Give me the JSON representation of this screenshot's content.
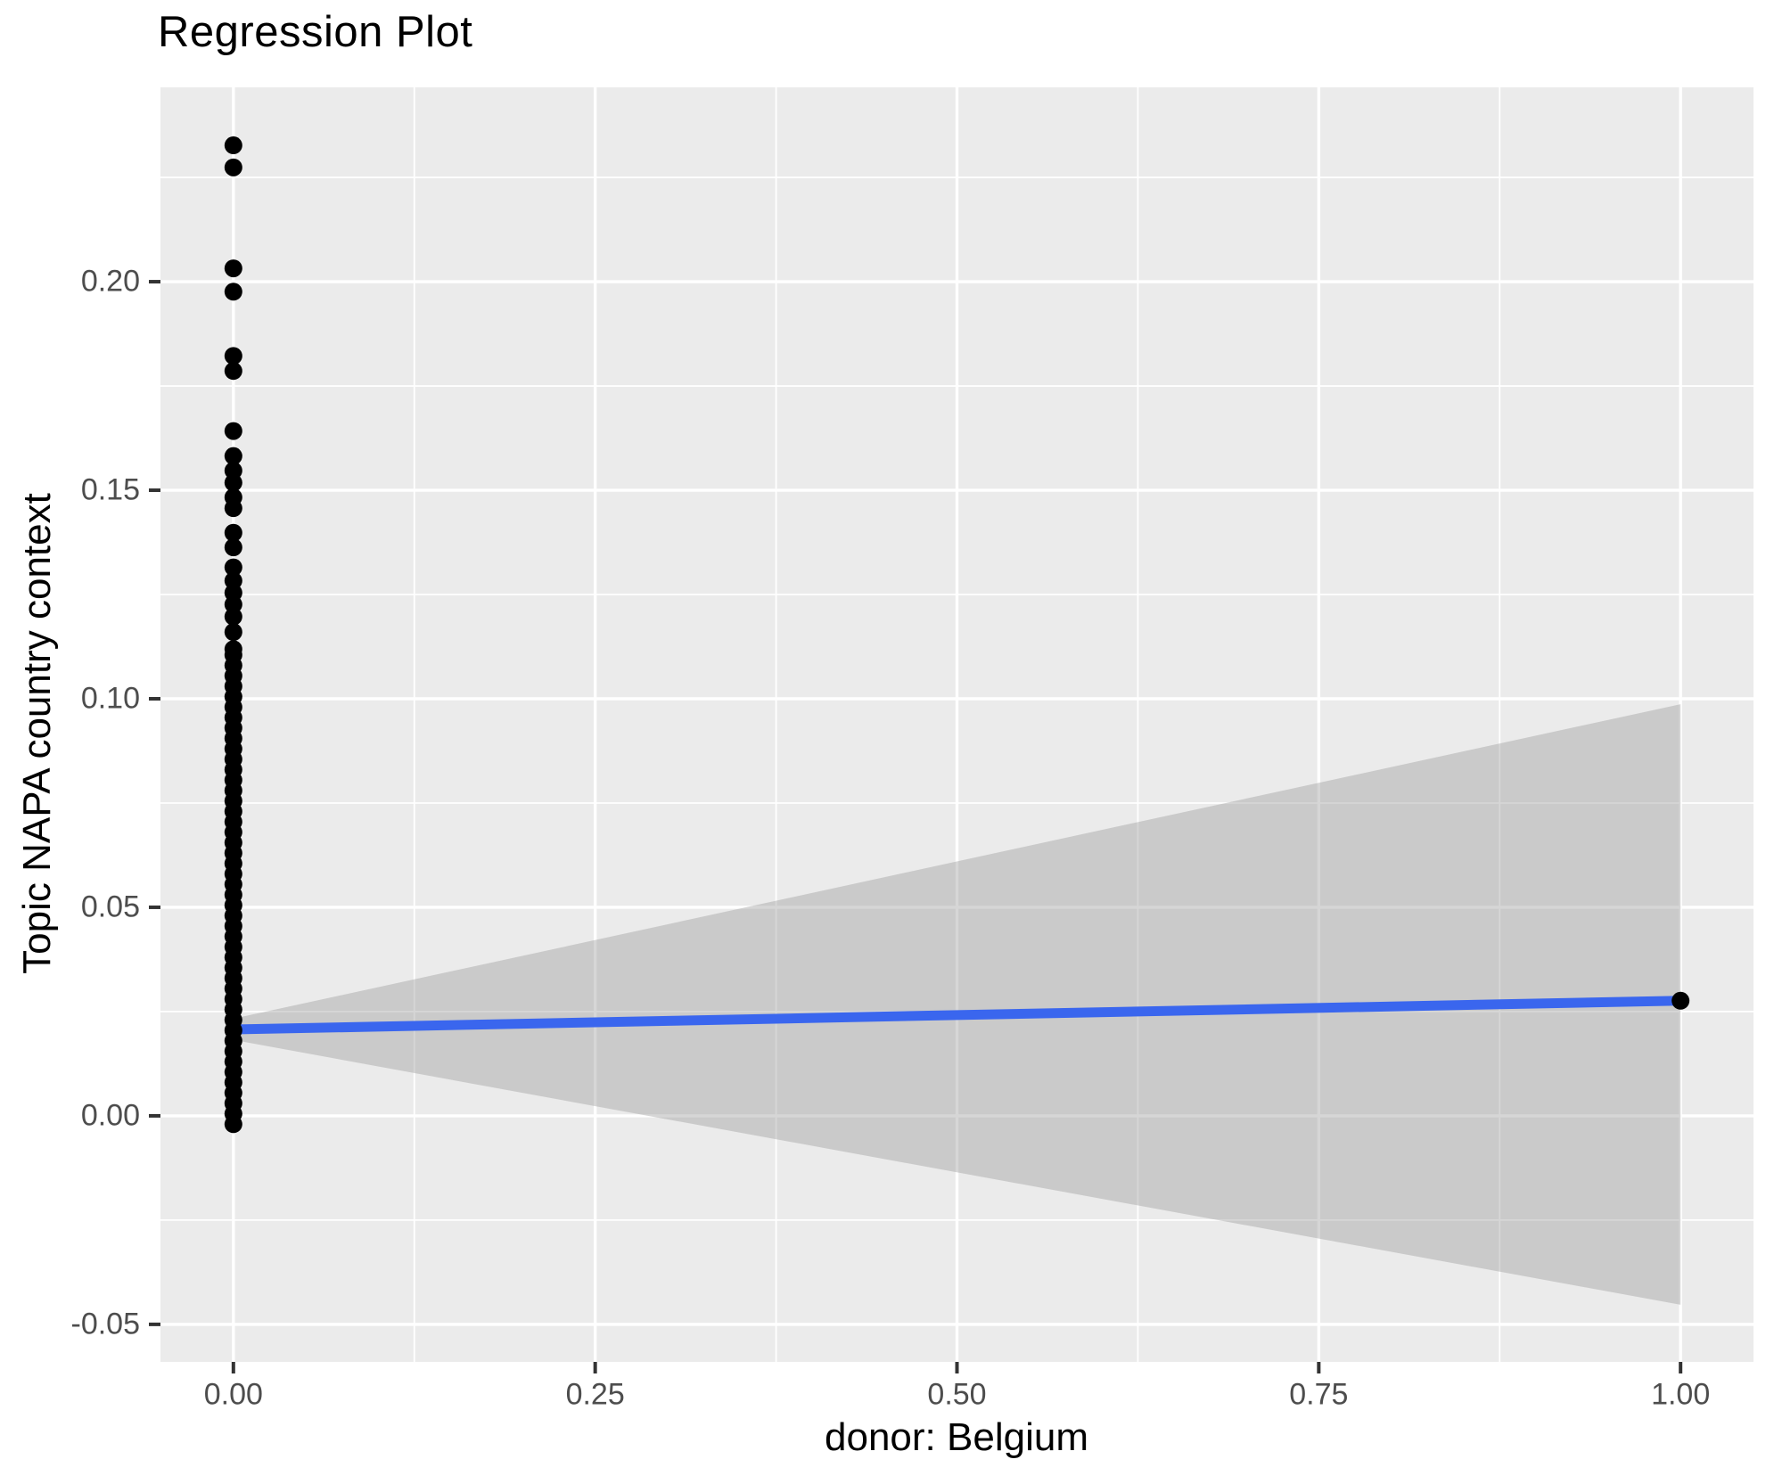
{
  "chart_data": {
    "type": "scatter",
    "title": "Regression Plot",
    "xlabel": "donor: Belgium",
    "ylabel": "Topic NAPA country context",
    "legend": "none",
    "grid": "on",
    "xlim": [
      -0.0504,
      1.0504
    ],
    "ylim": [
      -0.059,
      0.2466
    ],
    "x_ticks": [
      {
        "value": 0.0,
        "label": "0.00"
      },
      {
        "value": 0.25,
        "label": "0.25"
      },
      {
        "value": 0.5,
        "label": "0.50"
      },
      {
        "value": 0.75,
        "label": "0.75"
      },
      {
        "value": 1.0,
        "label": "1.00"
      }
    ],
    "y_ticks": [
      {
        "value": -0.05,
        "label": "-0.05"
      },
      {
        "value": 0.0,
        "label": "0.00"
      },
      {
        "value": 0.05,
        "label": "0.05"
      },
      {
        "value": 0.1,
        "label": "0.10"
      },
      {
        "value": 0.15,
        "label": "0.15"
      },
      {
        "value": 0.2,
        "label": "0.20"
      }
    ],
    "x_minor_ticks": [
      0.125,
      0.375,
      0.625,
      0.875
    ],
    "y_minor_ticks": [
      -0.025,
      0.025,
      0.075,
      0.125,
      0.175,
      0.225
    ],
    "points_at_x0_outliers": [
      0.2327,
      0.2274,
      0.2032,
      0.1976,
      0.1822,
      0.1786,
      0.1642,
      0.1582,
      0.1547,
      0.1518,
      0.1483,
      0.1457,
      0.1398,
      0.1363,
      0.1315,
      0.1283,
      0.1254,
      0.1226,
      0.1197,
      0.116,
      0.1119
    ],
    "points_at_x0_dense_column": {
      "x": 0.0,
      "from": -0.002,
      "to": 0.1105,
      "step": 0.0025
    },
    "point_at_x1": {
      "x": 1.0,
      "y": 0.0276
    },
    "regression_line": {
      "x": [
        0.0,
        1.0
      ],
      "y": [
        0.0207,
        0.0276
      ]
    },
    "confidence_band": {
      "x": [
        0.0,
        1.0
      ],
      "upper": [
        0.0233,
        0.0987
      ],
      "lower": [
        0.0182,
        -0.0453
      ]
    },
    "colors": {
      "point": "#000000",
      "line": "#3A66EE",
      "band": "rgba(153,153,153,0.4)",
      "panel_background": "#EBEBEB",
      "gridline": "#FFFFFF",
      "tick_mark": "#333333",
      "tick_label": "#4D4D4D",
      "title_text": "#000000"
    }
  }
}
